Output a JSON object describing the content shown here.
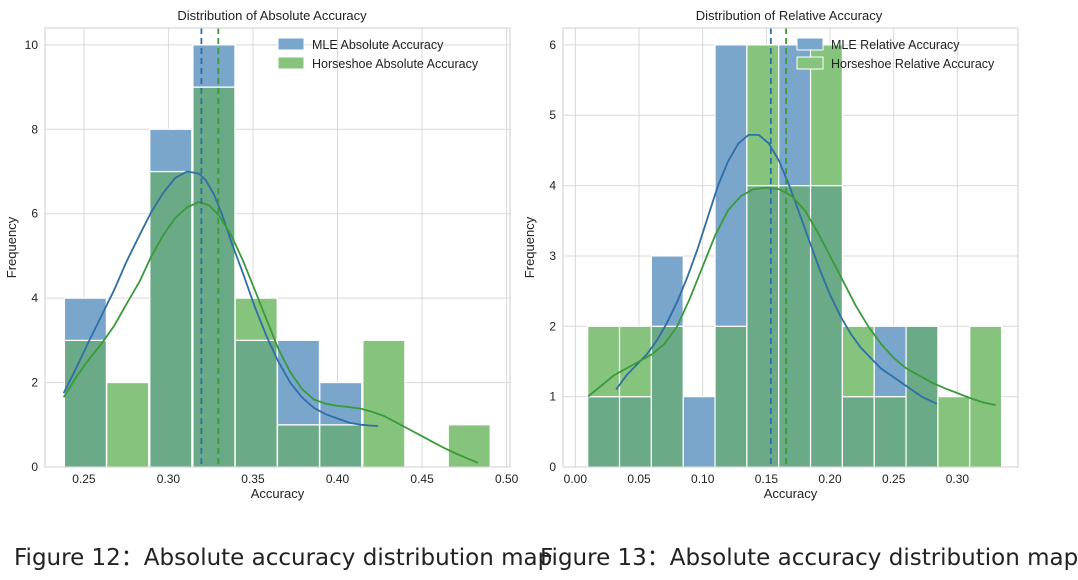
{
  "colors": {
    "mle_fill": "#7aa6cc",
    "mle_line": "#2f6ea6",
    "hs_fill": "#86c47e",
    "hs_line": "#3a9a3a",
    "overlap": "#6aaa86",
    "grid": "#d9d9d9",
    "axis": "#cfcfcf"
  },
  "captions": {
    "left": "Figure 12：Absolute accuracy distribution map",
    "right": "Figure 13：Absolute accuracy distribution map"
  },
  "chart_data": [
    {
      "type": "histogram",
      "title": "Distribution of Absolute Accuracy",
      "xlabel": "Accuracy",
      "ylabel": "Frequency",
      "xlim": [
        0.227,
        0.502
      ],
      "ylim": [
        0,
        10.4
      ],
      "xticks": [
        0.25,
        0.3,
        0.35,
        0.4,
        0.45,
        0.5
      ],
      "xtick_labels": [
        "0.25",
        "0.30",
        "0.35",
        "0.40",
        "0.45",
        "0.50"
      ],
      "yticks": [
        0,
        2,
        4,
        6,
        8,
        10
      ],
      "ytick_labels": [
        "0",
        "2",
        "4",
        "6",
        "8",
        "10"
      ],
      "grid": true,
      "legend_position": "top-right",
      "series": [
        {
          "name": "MLE Absolute Accuracy",
          "bin_edges": [
            0.2385,
            0.2635,
            0.289,
            0.3145,
            0.3395,
            0.3645,
            0.3895
          ],
          "bin_width": 0.0248,
          "counts": [
            4,
            0,
            8,
            10,
            3,
            3,
            2
          ],
          "mean": 0.3195,
          "kde": {
            "x": [
              0.238,
              0.245,
              0.252,
              0.26,
              0.268,
              0.275,
              0.283,
              0.29,
              0.297,
              0.304,
              0.311,
              0.318,
              0.322,
              0.327,
              0.332,
              0.337,
              0.344,
              0.351,
              0.358,
              0.365,
              0.372,
              0.379,
              0.386,
              0.393,
              0.4,
              0.407,
              0.414,
              0.42,
              0.424
            ],
            "y": [
              1.75,
              2.3,
              2.9,
              3.55,
              4.2,
              4.85,
              5.5,
              6.05,
              6.5,
              6.85,
              7.0,
              6.95,
              6.8,
              6.45,
              5.95,
              5.35,
              4.6,
              3.8,
              3.1,
              2.5,
              2.0,
              1.65,
              1.4,
              1.25,
              1.15,
              1.05,
              1.0,
              0.98,
              0.97
            ]
          }
        },
        {
          "name": "Horseshoe Absolute Accuracy",
          "bin_edges": [
            0.2385,
            0.2635,
            0.289,
            0.3145,
            0.3395,
            0.3645,
            0.3895,
            0.415,
            0.4655
          ],
          "bin_width": 0.0248,
          "counts": [
            3,
            2,
            7,
            9,
            4,
            1,
            1,
            3,
            1
          ],
          "mean": 0.3295,
          "kde": {
            "x": [
              0.238,
              0.245,
              0.252,
              0.26,
              0.268,
              0.275,
              0.283,
              0.29,
              0.297,
              0.304,
              0.311,
              0.318,
              0.324,
              0.33,
              0.337,
              0.344,
              0.351,
              0.358,
              0.365,
              0.372,
              0.379,
              0.386,
              0.393,
              0.4,
              0.407,
              0.414,
              0.421,
              0.428,
              0.435,
              0.442,
              0.449,
              0.456,
              0.463,
              0.47,
              0.477,
              0.483
            ],
            "y": [
              1.65,
              2.1,
              2.5,
              2.9,
              3.35,
              3.85,
              4.4,
              5.0,
              5.5,
              5.9,
              6.15,
              6.28,
              6.2,
              5.95,
              5.5,
              4.9,
              4.2,
              3.5,
              2.8,
              2.25,
              1.85,
              1.6,
              1.5,
              1.45,
              1.42,
              1.38,
              1.3,
              1.2,
              1.05,
              0.9,
              0.75,
              0.6,
              0.45,
              0.32,
              0.2,
              0.1
            ]
          }
        }
      ]
    },
    {
      "type": "histogram",
      "title": "Distribution of Relative Accuracy",
      "xlabel": "Accuracy",
      "ylabel": "Frequency",
      "xlim": [
        -0.0097,
        0.3476
      ],
      "ylim": [
        0,
        6.24
      ],
      "xticks": [
        0.0,
        0.05,
        0.1,
        0.15,
        0.2,
        0.25,
        0.3
      ],
      "xtick_labels": [
        "0.00",
        "0.05",
        "0.10",
        "0.15",
        "0.20",
        "0.25",
        "0.30"
      ],
      "yticks": [
        0,
        1,
        2,
        3,
        4,
        5,
        6
      ],
      "ytick_labels": [
        "0",
        "1",
        "2",
        "3",
        "4",
        "5",
        "6"
      ],
      "grid": true,
      "legend_position": "top-right",
      "series": [
        {
          "name": "MLE Relative Accuracy",
          "bin_edges": [
            0.0097,
            0.0347,
            0.0597,
            0.0847,
            0.1097,
            0.1347,
            0.1597,
            0.1847,
            0.2097,
            0.2347,
            0.2597,
            0.2847,
            0.3097
          ],
          "bin_width": 0.025,
          "counts": [
            1,
            1,
            3,
            1,
            6,
            4,
            6,
            4,
            1,
            2,
            2,
            0,
            0
          ],
          "mean": 0.1535,
          "kde": {
            "x": [
              0.032,
              0.04,
              0.048,
              0.056,
              0.064,
              0.072,
              0.08,
              0.088,
              0.096,
              0.104,
              0.112,
              0.12,
              0.128,
              0.136,
              0.144,
              0.152,
              0.16,
              0.168,
              0.176,
              0.184,
              0.192,
              0.2,
              0.208,
              0.216,
              0.224,
              0.232,
              0.24,
              0.248,
              0.256,
              0.264,
              0.272,
              0.28,
              0.284
            ],
            "y": [
              1.1,
              1.3,
              1.45,
              1.6,
              1.8,
              2.05,
              2.35,
              2.7,
              3.1,
              3.55,
              4.0,
              4.35,
              4.6,
              4.72,
              4.72,
              4.6,
              4.35,
              4.0,
              3.6,
              3.2,
              2.8,
              2.45,
              2.15,
              1.9,
              1.7,
              1.55,
              1.4,
              1.3,
              1.2,
              1.1,
              1.0,
              0.93,
              0.9
            ]
          }
        },
        {
          "name": "Horseshoe Relative Accuracy",
          "bin_edges": [
            0.0097,
            0.0347,
            0.0597,
            0.0847,
            0.1097,
            0.1347,
            0.1597,
            0.1847,
            0.2097,
            0.2347,
            0.2597,
            0.2847,
            0.3097
          ],
          "bin_width": 0.025,
          "counts": [
            2,
            2,
            2,
            0,
            2,
            6,
            4,
            6,
            2,
            1,
            2,
            1,
            2
          ],
          "mean": 0.1655,
          "kde": {
            "x": [
              0.01,
              0.02,
              0.03,
              0.04,
              0.05,
              0.06,
              0.07,
              0.08,
              0.09,
              0.1,
              0.11,
              0.12,
              0.13,
              0.14,
              0.15,
              0.16,
              0.17,
              0.18,
              0.19,
              0.2,
              0.21,
              0.22,
              0.23,
              0.24,
              0.25,
              0.26,
              0.27,
              0.28,
              0.29,
              0.3,
              0.31,
              0.32,
              0.325,
              0.33
            ],
            "y": [
              1.0,
              1.15,
              1.3,
              1.4,
              1.5,
              1.6,
              1.75,
              2.0,
              2.4,
              2.85,
              3.3,
              3.65,
              3.85,
              3.95,
              3.97,
              3.95,
              3.85,
              3.65,
              3.35,
              3.0,
              2.65,
              2.3,
              2.0,
              1.75,
              1.55,
              1.4,
              1.3,
              1.2,
              1.12,
              1.05,
              0.98,
              0.92,
              0.9,
              0.88
            ]
          }
        }
      ]
    }
  ]
}
